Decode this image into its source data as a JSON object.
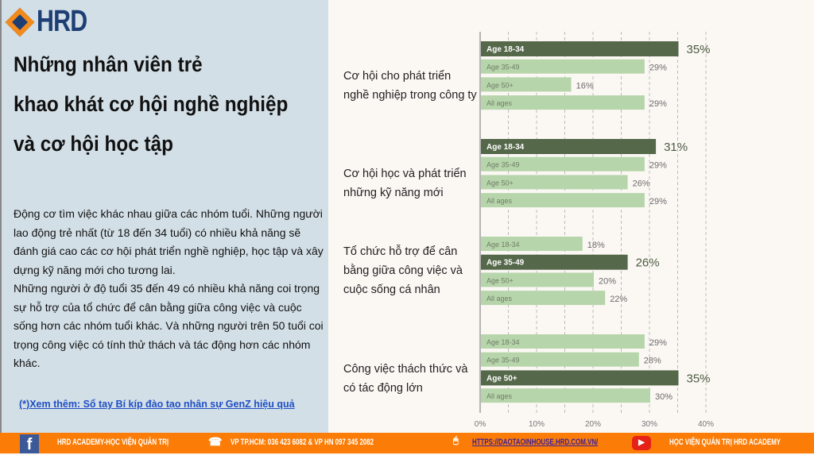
{
  "brand": {
    "logo": "HRD"
  },
  "title_lines": [
    "Những nhân viên trẻ",
    "khao khát cơ hội nghề nghiệp",
    "và cơ hội học tập"
  ],
  "body": "Động cơ tìm việc khác nhau giữa các nhóm tuổi. Những người lao động trẻ nhất (từ 18 đến 34 tuổi) có nhiều khả năng sẽ đánh giá cao các cơ hội phát triển nghề nghiệp, học tập và xây dựng kỹ năng mới cho tương lai.\nNhững người ở độ tuổi 35 đến 49 có nhiều khả năng coi trọng sự hỗ trợ của tổ chức để cân bằng giữa công việc và cuộc sống hơn các nhóm tuổi khác. Và những người trên 50 tuổi coi trọng công việc có tính thử thách và tác động hơn các nhóm khác.",
  "link": "(*)Xem thêm: Sổ tay Bí kíp đào tạo nhân sự GenZ hiệu quả",
  "colors": {
    "highlight": "#55684a",
    "normal": "#b7d5ab",
    "footer": "#fb7d07",
    "panel": "#d3dfe7"
  },
  "chart_data": {
    "type": "bar",
    "orientation": "horizontal",
    "xlim": [
      0,
      40
    ],
    "grid": true,
    "ticks": [
      "0%",
      "10%",
      "20%",
      "30%",
      "40%"
    ],
    "groups": [
      {
        "label": "Cơ hội cho phát triển nghề nghiệp trong công ty",
        "highlight": 0,
        "bars": [
          {
            "name": "Age 18-34",
            "value": 35
          },
          {
            "name": "Age 35-49",
            "value": 29
          },
          {
            "name": "Age 50+",
            "value": 16
          },
          {
            "name": "All ages",
            "value": 29
          }
        ]
      },
      {
        "label": "Cơ hội học và phát triển những kỹ năng mới",
        "highlight": 0,
        "bars": [
          {
            "name": "Age 18-34",
            "value": 31
          },
          {
            "name": "Age 35-49",
            "value": 29
          },
          {
            "name": "Age 50+",
            "value": 26
          },
          {
            "name": "All ages",
            "value": 29
          }
        ]
      },
      {
        "label": "Tổ chức hỗ trợ để cân bằng giữa công việc và cuộc sống cá nhân",
        "highlight": 1,
        "bars": [
          {
            "name": "Age 18-34",
            "value": 18
          },
          {
            "name": "Age 35-49",
            "value": 26
          },
          {
            "name": "Age 50+",
            "value": 20
          },
          {
            "name": "All ages",
            "value": 22
          }
        ]
      },
      {
        "label": "Công việc thách thức và có tác động lớn",
        "highlight": 2,
        "bars": [
          {
            "name": "Age 18-34",
            "value": 29
          },
          {
            "name": "Age 35-49",
            "value": 28
          },
          {
            "name": "Age 50+",
            "value": 35
          },
          {
            "name": "All ages",
            "value": 30
          }
        ]
      }
    ]
  },
  "footer": {
    "facebook": "HRD ACADEMY-HỌC VIỆN QUẢN TRỊ",
    "phone": "VP TP.HCM: 036 423 6082 &  VP HN 097 345 2082",
    "website": "HTTPS://DAOTAOINHOUSE.HRD.COM.VN/",
    "youtube": "HỌC VIỆN QUẢN TRỊ HRD ACADEMY",
    "fb_icon": "f",
    "yt_icon": "▶",
    "phone_icon": "☎",
    "mouse_icon": "🖱"
  }
}
